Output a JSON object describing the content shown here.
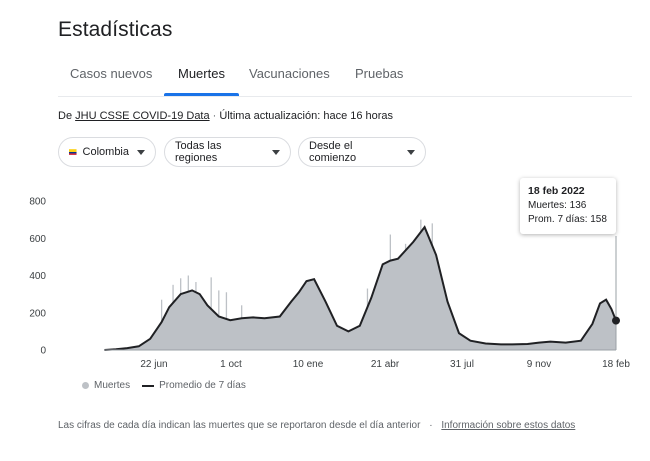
{
  "header": {
    "title": "Estadísticas"
  },
  "tabs": [
    {
      "label": "Casos nuevos",
      "active": false
    },
    {
      "label": "Muertes",
      "active": true
    },
    {
      "label": "Vacunaciones",
      "active": false
    },
    {
      "label": "Pruebas",
      "active": false
    }
  ],
  "source": {
    "prefix": "De",
    "link": "JHU CSSE COVID-19 Data",
    "separator": "·",
    "updated": "Última actualización: hace 16 horas"
  },
  "filters": {
    "country": "Colombia",
    "region": "Todas las regiones",
    "period": "Desde el comienzo"
  },
  "colors": {
    "accent": "#1a73e8",
    "bars": "#bdc1c6",
    "avg_line": "#202124",
    "flag_yellow": "#fcd116",
    "flag_blue": "#003893",
    "flag_red": "#ce1126"
  },
  "tooltip": {
    "date": "18 feb 2022",
    "deaths": "Muertes: 136",
    "avg": "Prom. 7 días: 158"
  },
  "legend": {
    "bars": "Muertes",
    "line": "Promedio de 7 días"
  },
  "footnote": {
    "text": "Las cifras de cada día indican las muertes que se reportaron desde el día anterior",
    "separator": "·",
    "link": "Información sobre estos datos"
  },
  "chart_data": {
    "type": "area",
    "ylim": [
      0,
      800
    ],
    "y_ticks": [
      0,
      200,
      400,
      600,
      800
    ],
    "x_tick_labels": [
      "22 jun",
      "1 oct",
      "10 ene",
      "21 abr",
      "31 jul",
      "9 nov",
      "18 feb"
    ],
    "x_tick_days": [
      0,
      101,
      202,
      303,
      404,
      505,
      606
    ],
    "grid": false,
    "series": [
      {
        "name": "Promedio de 7 días",
        "x": [
          -65,
          -50,
          -35,
          -20,
          -5,
          10,
          20,
          35,
          50,
          60,
          70,
          85,
          100,
          115,
          130,
          145,
          165,
          180,
          190,
          200,
          210,
          225,
          240,
          255,
          270,
          285,
          300,
          310,
          320,
          340,
          355,
          370,
          385,
          400,
          415,
          435,
          455,
          470,
          490,
          505,
          520,
          540,
          560,
          575,
          585,
          593,
          600,
          606
        ],
        "y": [
          0,
          4,
          10,
          20,
          60,
          150,
          230,
          300,
          320,
          300,
          240,
          180,
          160,
          170,
          175,
          170,
          180,
          260,
          310,
          370,
          380,
          260,
          130,
          100,
          130,
          280,
          460,
          480,
          490,
          580,
          660,
          510,
          260,
          90,
          50,
          35,
          30,
          30,
          32,
          40,
          45,
          40,
          50,
          140,
          250,
          270,
          220,
          158
        ]
      }
    ],
    "spikes": [
      {
        "x": 10,
        "y": 270
      },
      {
        "x": 25,
        "y": 350
      },
      {
        "x": 35,
        "y": 385
      },
      {
        "x": 45,
        "y": 400
      },
      {
        "x": 55,
        "y": 365
      },
      {
        "x": 75,
        "y": 390
      },
      {
        "x": 85,
        "y": 320
      },
      {
        "x": 95,
        "y": 310
      },
      {
        "x": 115,
        "y": 240
      },
      {
        "x": 280,
        "y": 330
      },
      {
        "x": 310,
        "y": 620
      },
      {
        "x": 330,
        "y": 570
      },
      {
        "x": 350,
        "y": 700
      },
      {
        "x": 365,
        "y": 680
      },
      {
        "x": 580,
        "y": 100
      }
    ]
  }
}
